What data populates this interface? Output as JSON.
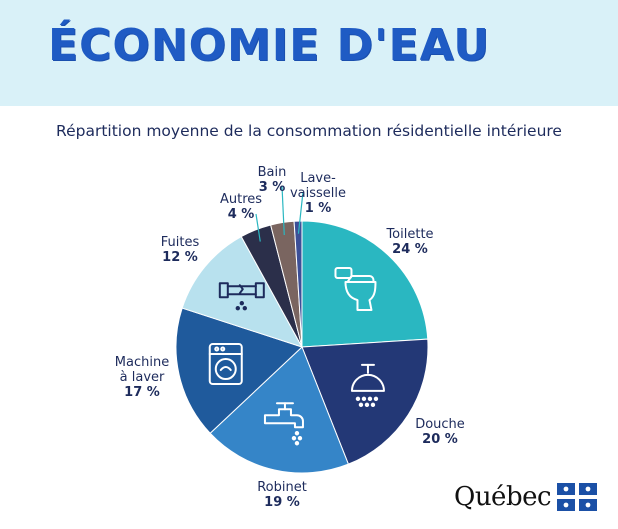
{
  "banner": {
    "title": "ÉCONOMIE D'EAU"
  },
  "subtitle": "Répartition moyenne de la consommation résidentielle intérieure",
  "brand": {
    "wordmark": "Québec",
    "flag_icon": "quebec-flag-icon"
  },
  "colors": {
    "banner_bg": "#d9f1f8",
    "title": "#1f5bc4",
    "text": "#1d2b5c",
    "icon_stroke": "#ffffff"
  },
  "chart_data": {
    "type": "pie",
    "title": "Répartition moyenne de la consommation résidentielle intérieure",
    "unit": "%",
    "slices": [
      {
        "name": [
          "Toilette"
        ],
        "value": 24,
        "value_label": "24 %",
        "color": "#2ab7c1",
        "icon": "toilet-icon"
      },
      {
        "name": [
          "Douche"
        ],
        "value": 20,
        "value_label": "20 %",
        "color": "#233876",
        "icon": "shower-icon"
      },
      {
        "name": [
          "Robinet"
        ],
        "value": 19,
        "value_label": "19 %",
        "color": "#3585c8",
        "icon": "faucet-icon"
      },
      {
        "name": [
          "Machine",
          "à laver"
        ],
        "value": 17,
        "value_label": "17 %",
        "color": "#1f5a9c",
        "icon": "washing-machine-icon"
      },
      {
        "name": [
          "Fuites"
        ],
        "value": 12,
        "value_label": "12 %",
        "color": "#b8e1ee",
        "icon": "leaking-pipe-icon"
      },
      {
        "name": [
          "Autres"
        ],
        "value": 4,
        "value_label": "4 %",
        "color": "#2b2f4a",
        "icon": ""
      },
      {
        "name": [
          "Bain"
        ],
        "value": 3,
        "value_label": "3 %",
        "color": "#7a6560",
        "icon": ""
      },
      {
        "name": [
          "Lave-",
          "vaisselle"
        ],
        "value": 1,
        "value_label": "1 %",
        "color": "#3c4f97",
        "icon": ""
      }
    ]
  }
}
